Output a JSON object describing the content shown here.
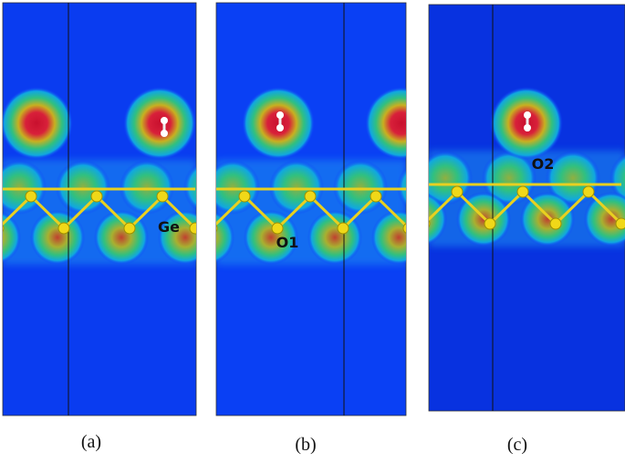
{
  "panels": [
    {
      "label": "(a)",
      "atom_label": "Ge"
    },
    {
      "label": "(b)",
      "atom_label": "O1"
    },
    {
      "label": "(c)",
      "atom_label": "O2"
    }
  ]
}
